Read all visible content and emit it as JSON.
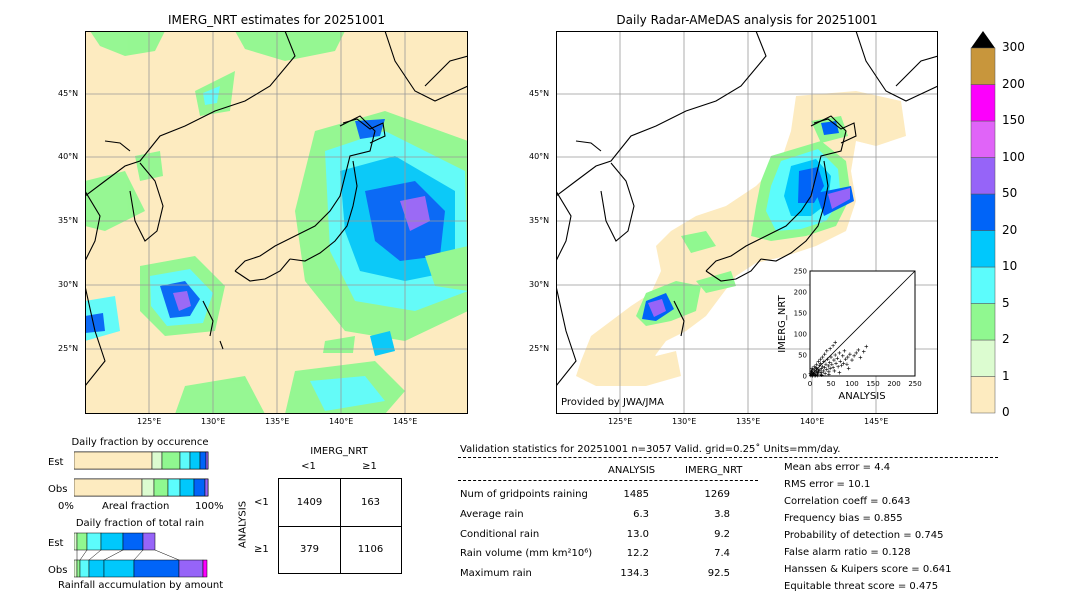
{
  "left_map": {
    "title": "IMERG_NRT estimates for 20251001",
    "lat_labels": [
      "45°N",
      "40°N",
      "35°N",
      "30°N",
      "25°N"
    ],
    "lon_labels": [
      "125°E",
      "130°E",
      "135°E",
      "140°E",
      "145°E"
    ]
  },
  "right_map": {
    "title": "Daily Radar-AMeDAS analysis for 20251001",
    "lat_labels": [
      "45°N",
      "40°N",
      "35°N",
      "30°N",
      "25°N"
    ],
    "lon_labels": [
      "125°E",
      "130°E",
      "135°E",
      "140°E",
      "145°E"
    ],
    "credit": "Provided by JWA/JMA"
  },
  "colorbar": {
    "labels": [
      "0",
      "1",
      "2",
      "5",
      "10",
      "20",
      "50",
      "100",
      "150",
      "200",
      "300"
    ],
    "colors": [
      "#fdebc0",
      "#dcfcd0",
      "#90f890",
      "#5cfcfc",
      "#00c8fc",
      "#0064f8",
      "#9664f8",
      "#e064f8",
      "#fc00fc",
      "#c8963c"
    ],
    "extend_color": "#000000"
  },
  "fraction_occurrence": {
    "title": "Daily fraction by occurence",
    "row_est": "Est",
    "row_obs": "Obs",
    "axis_left": "0%",
    "axis_mid": "Areal fraction",
    "axis_right": "100%"
  },
  "fraction_total": {
    "title": "Daily fraction of total rain",
    "row_est": "Est",
    "row_obs": "Obs",
    "axis_label": "Rainfall accumulation by amount"
  },
  "contingency": {
    "top_title": "IMERG_NRT",
    "col_lt": "<1",
    "col_ge": "≥1",
    "side_title": "ANALYSIS",
    "row_lt": "<1",
    "row_ge": "≥1",
    "c11": "1409",
    "c12": "163",
    "c21": "379",
    "c22": "1106"
  },
  "stats": {
    "header": "Validation statistics for 20251001  n=3057 Valid. grid=0.25˚ Units=mm/day.",
    "col_analysis": "ANALYSIS",
    "col_imerg": "IMERG_NRT",
    "rows": [
      {
        "label": "Num of gridpoints raining",
        "analysis": "1485",
        "imerg": "1269"
      },
      {
        "label": "Average rain",
        "analysis": "6.3",
        "imerg": "3.8"
      },
      {
        "label": "Conditional rain",
        "analysis": "13.0",
        "imerg": "9.2"
      },
      {
        "label": "Rain volume (mm km²10⁶)",
        "analysis": "12.2",
        "imerg": "7.4"
      },
      {
        "label": "Maximum rain",
        "analysis": "134.3",
        "imerg": "92.5"
      }
    ],
    "right": [
      "Mean abs error =    4.4",
      "RMS error =   10.1",
      "Correlation coeff =  0.643",
      "Frequency bias =  0.855",
      "Probability of detection =  0.745",
      "False alarm ratio =  0.128",
      "Hanssen & Kuipers score =  0.641",
      "Equitable threat score =  0.475"
    ]
  },
  "chart_data": {
    "type": "scatter",
    "xlabel": "ANALYSIS",
    "ylabel": "IMERG_NRT",
    "xlim": [
      0,
      250
    ],
    "ylim": [
      0,
      250
    ],
    "ticks": [
      0,
      50,
      100,
      150,
      200,
      250
    ],
    "tick_labels": [
      "0",
      "50",
      "100",
      "150",
      "200",
      "250"
    ],
    "diagonal": true,
    "points": [
      [
        2,
        1
      ],
      [
        3,
        4
      ],
      [
        5,
        2
      ],
      [
        6,
        8
      ],
      [
        8,
        5
      ],
      [
        10,
        3
      ],
      [
        12,
        9
      ],
      [
        4,
        12
      ],
      [
        7,
        15
      ],
      [
        9,
        6
      ],
      [
        11,
        14
      ],
      [
        13,
        2
      ],
      [
        15,
        10
      ],
      [
        16,
        18
      ],
      [
        18,
        7
      ],
      [
        20,
        12
      ],
      [
        22,
        25
      ],
      [
        14,
        20
      ],
      [
        17,
        4
      ],
      [
        19,
        16
      ],
      [
        21,
        9
      ],
      [
        24,
        14
      ],
      [
        25,
        30
      ],
      [
        27,
        18
      ],
      [
        28,
        8
      ],
      [
        30,
        22
      ],
      [
        32,
        12
      ],
      [
        33,
        35
      ],
      [
        35,
        20
      ],
      [
        36,
        6
      ],
      [
        38,
        28
      ],
      [
        40,
        15
      ],
      [
        42,
        40
      ],
      [
        44,
        24
      ],
      [
        45,
        10
      ],
      [
        47,
        32
      ],
      [
        48,
        18
      ],
      [
        50,
        45
      ],
      [
        52,
        28
      ],
      [
        55,
        20
      ],
      [
        57,
        38
      ],
      [
        58,
        12
      ],
      [
        60,
        50
      ],
      [
        62,
        30
      ],
      [
        65,
        42
      ],
      [
        67,
        22
      ],
      [
        70,
        55
      ],
      [
        72,
        35
      ],
      [
        75,
        25
      ],
      [
        78,
        48
      ],
      [
        80,
        30
      ],
      [
        82,
        60
      ],
      [
        85,
        40
      ],
      [
        88,
        28
      ],
      [
        90,
        45
      ],
      [
        95,
        52
      ],
      [
        100,
        38
      ],
      [
        105,
        48
      ],
      [
        110,
        55
      ],
      [
        115,
        62
      ],
      [
        120,
        44
      ],
      [
        128,
        58
      ],
      [
        134,
        70
      ],
      [
        40,
        60
      ],
      [
        35,
        52
      ],
      [
        30,
        45
      ],
      [
        55,
        72
      ],
      [
        48,
        65
      ],
      [
        60,
        80
      ],
      [
        25,
        40
      ],
      [
        20,
        35
      ],
      [
        15,
        28
      ],
      [
        10,
        22
      ],
      [
        5,
        18
      ],
      [
        3,
        10
      ],
      [
        1,
        6
      ],
      [
        26,
        3
      ],
      [
        45,
        4
      ],
      [
        70,
        8
      ],
      [
        92,
        18
      ],
      [
        6,
        0
      ],
      [
        12,
        0
      ],
      [
        18,
        1
      ],
      [
        28,
        2
      ]
    ]
  }
}
